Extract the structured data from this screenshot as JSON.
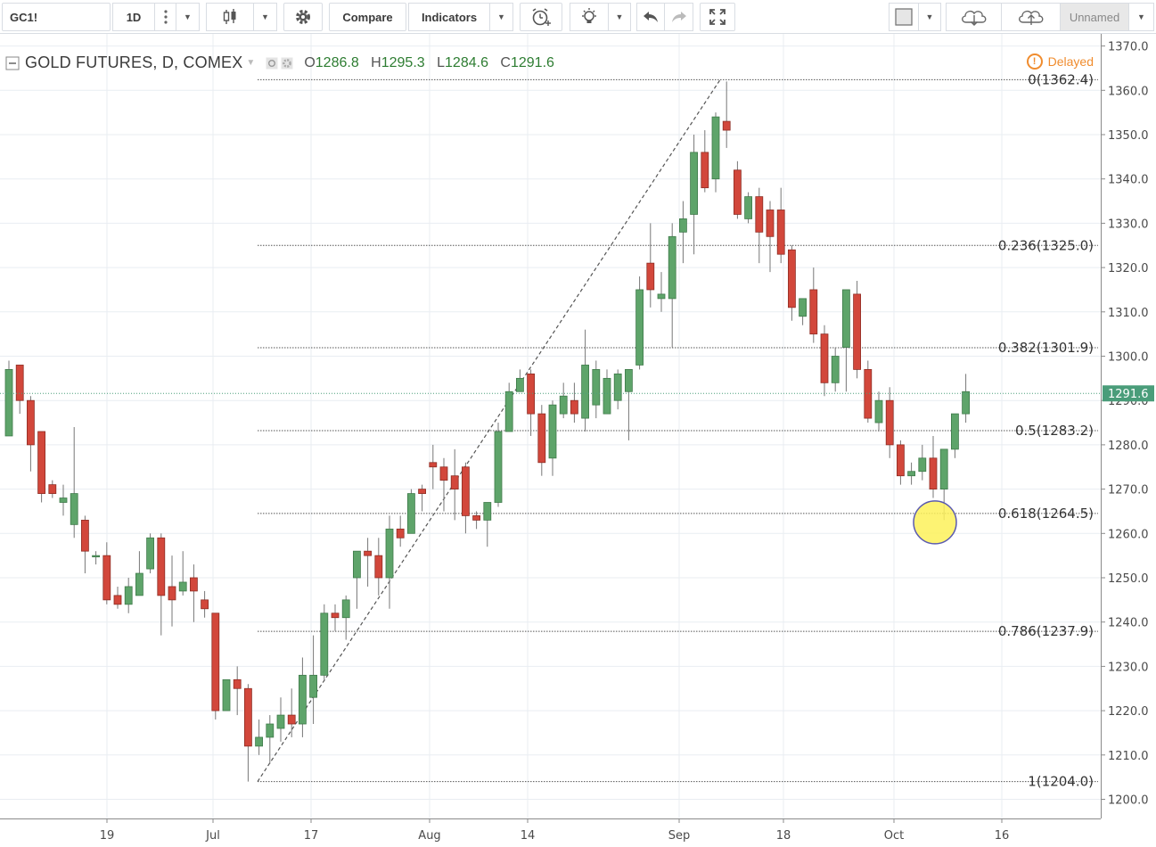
{
  "toolbar": {
    "symbol": "GC1!",
    "interval": "1D",
    "compare_label": "Compare",
    "indicators_label": "Indicators",
    "layout_name": "Unnamed",
    "icons": [
      "more-vert-icon",
      "candlestick-icon",
      "gear-icon",
      "alarm-add-icon",
      "lightbulb-icon",
      "undo-icon",
      "redo-icon",
      "fullscreen-icon",
      "color-square-icon",
      "cloud-download-icon",
      "cloud-upload-icon"
    ]
  },
  "legend": {
    "title": "GOLD FUTURES, D, COMEX",
    "o_label": "O",
    "o_value": "1286.8",
    "h_label": "H",
    "h_value": "1295.3",
    "l_label": "L",
    "l_value": "1284.6",
    "c_label": "C",
    "c_value": "1291.6",
    "status": "Delayed"
  },
  "colors": {
    "up": "#5ea46a",
    "down": "#d2473b",
    "grid": "#e9edf2",
    "fib_line": "#555555",
    "price_tag": "#4a9d7a",
    "highlight": "#fdf15a"
  },
  "chart_data": {
    "type": "candlestick",
    "y_axis": {
      "ticks": [
        1200,
        1210,
        1220,
        1230,
        1240,
        1250,
        1260,
        1270,
        1280,
        1290,
        1300,
        1310,
        1320,
        1330,
        1340,
        1350,
        1360,
        1370
      ]
    },
    "x_axis": {
      "tick_labels": [
        "19",
        "Jul",
        "17",
        "Aug",
        "14",
        "Sep",
        "18",
        "Oct",
        "16"
      ]
    },
    "last_price": "1291.6",
    "candles": [
      {
        "o": 1282,
        "h": 1299,
        "l": 1282,
        "c": 1297
      },
      {
        "o": 1298,
        "h": 1298,
        "l": 1287,
        "c": 1290
      },
      {
        "o": 1290,
        "h": 1291,
        "l": 1274,
        "c": 1280
      },
      {
        "o": 1283,
        "h": 1283,
        "l": 1267,
        "c": 1269
      },
      {
        "o": 1271,
        "h": 1272,
        "l": 1268,
        "c": 1269
      },
      {
        "o": 1267,
        "h": 1271,
        "l": 1264,
        "c": 1268
      },
      {
        "o": 1262,
        "h": 1284,
        "l": 1259,
        "c": 1269
      },
      {
        "o": 1263,
        "h": 1264,
        "l": 1251,
        "c": 1256
      },
      {
        "o": 1255,
        "h": 1256,
        "l": 1253,
        "c": 1255
      },
      {
        "o": 1255,
        "h": 1258,
        "l": 1244,
        "c": 1245
      },
      {
        "o": 1246,
        "h": 1248,
        "l": 1243,
        "c": 1244
      },
      {
        "o": 1244,
        "h": 1250,
        "l": 1242,
        "c": 1248
      },
      {
        "o": 1246,
        "h": 1256,
        "l": 1246,
        "c": 1251
      },
      {
        "o": 1252,
        "h": 1260,
        "l": 1251,
        "c": 1259
      },
      {
        "o": 1259,
        "h": 1260,
        "l": 1237,
        "c": 1246
      },
      {
        "o": 1248,
        "h": 1255,
        "l": 1239,
        "c": 1245
      },
      {
        "o": 1247,
        "h": 1256,
        "l": 1246,
        "c": 1249
      },
      {
        "o": 1250,
        "h": 1253,
        "l": 1240,
        "c": 1247
      },
      {
        "o": 1245,
        "h": 1247,
        "l": 1241,
        "c": 1243
      },
      {
        "o": 1242,
        "h": 1242,
        "l": 1218,
        "c": 1220
      },
      {
        "o": 1220,
        "h": 1227,
        "l": 1220,
        "c": 1227
      },
      {
        "o": 1227,
        "h": 1230,
        "l": 1219,
        "c": 1225
      },
      {
        "o": 1225,
        "h": 1226,
        "l": 1204,
        "c": 1212
      },
      {
        "o": 1212,
        "h": 1218,
        "l": 1210,
        "c": 1214
      },
      {
        "o": 1214,
        "h": 1219,
        "l": 1208,
        "c": 1217
      },
      {
        "o": 1216,
        "h": 1223,
        "l": 1213,
        "c": 1219
      },
      {
        "o": 1219,
        "h": 1225,
        "l": 1214,
        "c": 1217
      },
      {
        "o": 1217,
        "h": 1232,
        "l": 1214,
        "c": 1228
      },
      {
        "o": 1223,
        "h": 1237,
        "l": 1217,
        "c": 1228
      },
      {
        "o": 1228,
        "h": 1244,
        "l": 1227,
        "c": 1242
      },
      {
        "o": 1242,
        "h": 1244,
        "l": 1238,
        "c": 1241
      },
      {
        "o": 1241,
        "h": 1246,
        "l": 1236,
        "c": 1245
      },
      {
        "o": 1250,
        "h": 1256,
        "l": 1243,
        "c": 1256
      },
      {
        "o": 1256,
        "h": 1259,
        "l": 1248,
        "c": 1255
      },
      {
        "o": 1255,
        "h": 1259,
        "l": 1246,
        "c": 1250
      },
      {
        "o": 1250,
        "h": 1264,
        "l": 1243,
        "c": 1261
      },
      {
        "o": 1261,
        "h": 1264,
        "l": 1257,
        "c": 1259
      },
      {
        "o": 1260,
        "h": 1270,
        "l": 1260,
        "c": 1269
      },
      {
        "o": 1270,
        "h": 1271,
        "l": 1265,
        "c": 1269
      },
      {
        "o": 1276,
        "h": 1280,
        "l": 1270,
        "c": 1275
      },
      {
        "o": 1275,
        "h": 1277,
        "l": 1265,
        "c": 1272
      },
      {
        "o": 1273,
        "h": 1279,
        "l": 1263,
        "c": 1270
      },
      {
        "o": 1275,
        "h": 1276,
        "l": 1260,
        "c": 1264
      },
      {
        "o": 1264,
        "h": 1265,
        "l": 1261,
        "c": 1263
      },
      {
        "o": 1263,
        "h": 1267,
        "l": 1257,
        "c": 1267
      },
      {
        "o": 1267,
        "h": 1285,
        "l": 1266,
        "c": 1283
      },
      {
        "o": 1283,
        "h": 1294,
        "l": 1283,
        "c": 1292
      },
      {
        "o": 1292,
        "h": 1297,
        "l": 1292,
        "c": 1295
      },
      {
        "o": 1296,
        "h": 1297,
        "l": 1282,
        "c": 1287
      },
      {
        "o": 1287,
        "h": 1289,
        "l": 1273,
        "c": 1276
      },
      {
        "o": 1277,
        "h": 1290,
        "l": 1273,
        "c": 1289
      },
      {
        "o": 1287,
        "h": 1294,
        "l": 1286,
        "c": 1291
      },
      {
        "o": 1290,
        "h": 1294,
        "l": 1285,
        "c": 1287
      },
      {
        "o": 1286,
        "h": 1306,
        "l": 1283,
        "c": 1298
      },
      {
        "o": 1289,
        "h": 1299,
        "l": 1286,
        "c": 1297
      },
      {
        "o": 1287,
        "h": 1297,
        "l": 1287,
        "c": 1295
      },
      {
        "o": 1290,
        "h": 1297,
        "l": 1288,
        "c": 1296
      },
      {
        "o": 1292,
        "h": 1297,
        "l": 1281,
        "c": 1297
      },
      {
        "o": 1298,
        "h": 1318,
        "l": 1297,
        "c": 1315
      },
      {
        "o": 1321,
        "h": 1330,
        "l": 1311,
        "c": 1315
      },
      {
        "o": 1313,
        "h": 1319,
        "l": 1310,
        "c": 1314
      },
      {
        "o": 1313,
        "h": 1330,
        "l": 1302,
        "c": 1327
      },
      {
        "o": 1328,
        "h": 1335,
        "l": 1321,
        "c": 1331
      },
      {
        "o": 1332,
        "h": 1350,
        "l": 1323,
        "c": 1346
      },
      {
        "o": 1346,
        "h": 1351,
        "l": 1337,
        "c": 1338
      },
      {
        "o": 1340,
        "h": 1355,
        "l": 1337,
        "c": 1354
      },
      {
        "o": 1353,
        "h": 1362,
        "l": 1347,
        "c": 1351
      },
      {
        "o": 1342,
        "h": 1344,
        "l": 1331,
        "c": 1332
      },
      {
        "o": 1331,
        "h": 1337,
        "l": 1330,
        "c": 1336
      },
      {
        "o": 1336,
        "h": 1338,
        "l": 1321,
        "c": 1328
      },
      {
        "o": 1333,
        "h": 1335,
        "l": 1319,
        "c": 1327
      },
      {
        "o": 1333,
        "h": 1338,
        "l": 1321,
        "c": 1323
      },
      {
        "o": 1324,
        "h": 1325,
        "l": 1308,
        "c": 1311
      },
      {
        "o": 1309,
        "h": 1312,
        "l": 1307,
        "c": 1313
      },
      {
        "o": 1315,
        "h": 1320,
        "l": 1303,
        "c": 1305
      },
      {
        "o": 1305,
        "h": 1307,
        "l": 1291,
        "c": 1294
      },
      {
        "o": 1294,
        "h": 1302,
        "l": 1292,
        "c": 1300
      },
      {
        "o": 1302,
        "h": 1315,
        "l": 1292,
        "c": 1315
      },
      {
        "o": 1314,
        "h": 1317,
        "l": 1295,
        "c": 1297
      },
      {
        "o": 1297,
        "h": 1299,
        "l": 1285,
        "c": 1286
      },
      {
        "o": 1285,
        "h": 1292,
        "l": 1283,
        "c": 1290
      },
      {
        "o": 1290,
        "h": 1293,
        "l": 1277,
        "c": 1280
      },
      {
        "o": 1280,
        "h": 1281,
        "l": 1271,
        "c": 1273
      },
      {
        "o": 1273,
        "h": 1276,
        "l": 1271,
        "c": 1274
      },
      {
        "o": 1274,
        "h": 1280,
        "l": 1272,
        "c": 1277
      },
      {
        "o": 1277,
        "h": 1282,
        "l": 1268,
        "c": 1270
      },
      {
        "o": 1270,
        "h": 1279,
        "l": 1263,
        "c": 1279
      },
      {
        "o": 1279,
        "h": 1287,
        "l": 1277,
        "c": 1287
      },
      {
        "o": 1287,
        "h": 1296,
        "l": 1285,
        "c": 1292
      }
    ],
    "fibonacci": {
      "levels": [
        {
          "label": "0(1362.4)",
          "value": 1362.4
        },
        {
          "label": "0.236(1325.0)",
          "value": 1325.0
        },
        {
          "label": "0.382(1301.9)",
          "value": 1301.9
        },
        {
          "label": "0.5(1283.2)",
          "value": 1283.2
        },
        {
          "label": "0.618(1264.5)",
          "value": 1264.5
        },
        {
          "label": "0.786(1237.9)",
          "value": 1237.9
        },
        {
          "label": "1(1204.0)",
          "value": 1204.0
        }
      ],
      "trend_line": {
        "from": 1204.0,
        "to": 1362.4
      }
    }
  }
}
